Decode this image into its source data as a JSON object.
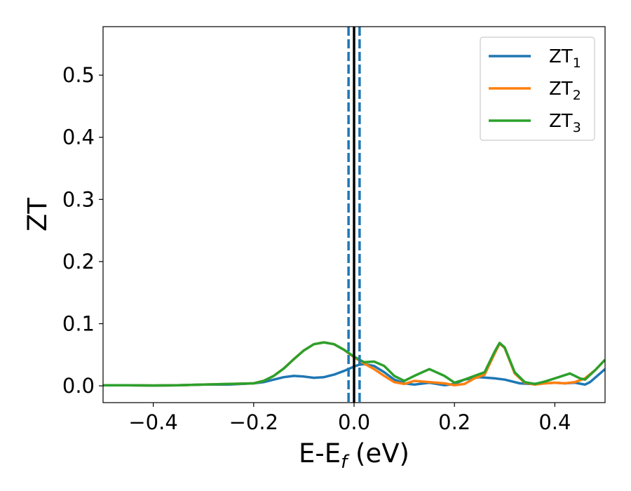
{
  "chart_data": {
    "type": "line",
    "title": "",
    "xlabel": {
      "main": "E-E",
      "sub": "f",
      "suffix": " (eV)"
    },
    "ylabel": "ZT",
    "xlim": [
      -0.5,
      0.5
    ],
    "ylim": [
      -0.027,
      0.578
    ],
    "x_ticks": [
      -0.4,
      -0.2,
      0.0,
      0.2,
      0.4
    ],
    "x_tick_labels": [
      "−0.4",
      "−0.2",
      "0.0",
      "0.2",
      "0.4"
    ],
    "y_ticks": [
      0.0,
      0.1,
      0.2,
      0.3,
      0.4,
      0.5
    ],
    "y_tick_labels": [
      "0.0",
      "0.1",
      "0.2",
      "0.3",
      "0.4",
      "0.5"
    ],
    "grid": false,
    "legend_position": "top-right",
    "vertical_lines": [
      {
        "x": 0.0,
        "style": "solid",
        "color": "#000000"
      },
      {
        "x": -0.011,
        "style": "dashed",
        "color": "#1f77b4"
      },
      {
        "x": 0.011,
        "style": "dashed",
        "color": "#1f77b4"
      }
    ],
    "series": [
      {
        "name": "ZT",
        "sub": "1",
        "color": "#1f77b4",
        "points": [
          [
            -0.5,
            0.001
          ],
          [
            -0.45,
            0.001
          ],
          [
            -0.4,
            0.0005
          ],
          [
            -0.35,
            0.001
          ],
          [
            -0.3,
            0.002
          ],
          [
            -0.25,
            0.002
          ],
          [
            -0.2,
            0.004
          ],
          [
            -0.18,
            0.006
          ],
          [
            -0.16,
            0.01
          ],
          [
            -0.14,
            0.014
          ],
          [
            -0.12,
            0.016
          ],
          [
            -0.1,
            0.015
          ],
          [
            -0.08,
            0.013
          ],
          [
            -0.06,
            0.014
          ],
          [
            -0.04,
            0.018
          ],
          [
            -0.02,
            0.024
          ],
          [
            0.0,
            0.031
          ],
          [
            0.01,
            0.034
          ],
          [
            0.02,
            0.035
          ],
          [
            0.04,
            0.032
          ],
          [
            0.06,
            0.022
          ],
          [
            0.08,
            0.01
          ],
          [
            0.1,
            0.004
          ],
          [
            0.12,
            0.002
          ],
          [
            0.15,
            0.005
          ],
          [
            0.18,
            0.001
          ],
          [
            0.2,
            0.003
          ],
          [
            0.22,
            0.01
          ],
          [
            0.25,
            0.014
          ],
          [
            0.28,
            0.012
          ],
          [
            0.3,
            0.01
          ],
          [
            0.33,
            0.004
          ],
          [
            0.35,
            0.003
          ],
          [
            0.38,
            0.004
          ],
          [
            0.4,
            0.005
          ],
          [
            0.42,
            0.004
          ],
          [
            0.44,
            0.005
          ],
          [
            0.46,
            0.002
          ],
          [
            0.47,
            0.006
          ],
          [
            0.49,
            0.02
          ],
          [
            0.5,
            0.027
          ]
        ]
      },
      {
        "name": "ZT",
        "sub": "2",
        "color": "#ff7f0e",
        "points": [
          [
            -0.5,
            0.001
          ],
          [
            -0.45,
            0.001
          ],
          [
            -0.4,
            0.0005
          ],
          [
            -0.35,
            0.001
          ],
          [
            -0.3,
            0.002
          ],
          [
            -0.25,
            0.003
          ],
          [
            -0.2,
            0.004
          ],
          [
            -0.18,
            0.008
          ],
          [
            -0.16,
            0.016
          ],
          [
            -0.14,
            0.028
          ],
          [
            -0.12,
            0.043
          ],
          [
            -0.1,
            0.057
          ],
          [
            -0.08,
            0.067
          ],
          [
            -0.06,
            0.07
          ],
          [
            -0.04,
            0.067
          ],
          [
            -0.02,
            0.058
          ],
          [
            0.0,
            0.046
          ],
          [
            0.02,
            0.036
          ],
          [
            0.04,
            0.027
          ],
          [
            0.06,
            0.016
          ],
          [
            0.08,
            0.006
          ],
          [
            0.1,
            0.003
          ],
          [
            0.12,
            0.008
          ],
          [
            0.15,
            0.006
          ],
          [
            0.18,
            0.004
          ],
          [
            0.2,
            0.001
          ],
          [
            0.22,
            0.003
          ],
          [
            0.24,
            0.012
          ],
          [
            0.26,
            0.018
          ],
          [
            0.28,
            0.052
          ],
          [
            0.29,
            0.068
          ],
          [
            0.3,
            0.061
          ],
          [
            0.32,
            0.02
          ],
          [
            0.34,
            0.005
          ],
          [
            0.36,
            0.002
          ],
          [
            0.38,
            0.004
          ],
          [
            0.4,
            0.005
          ],
          [
            0.42,
            0.004
          ],
          [
            0.44,
            0.006
          ],
          [
            0.46,
            0.012
          ],
          [
            0.48,
            0.025
          ],
          [
            0.5,
            0.042
          ]
        ]
      },
      {
        "name": "ZT",
        "sub": "3",
        "color": "#2ca02c",
        "points": [
          [
            -0.5,
            0.001
          ],
          [
            -0.45,
            0.001
          ],
          [
            -0.4,
            0.0005
          ],
          [
            -0.35,
            0.001
          ],
          [
            -0.3,
            0.002
          ],
          [
            -0.25,
            0.003
          ],
          [
            -0.2,
            0.004
          ],
          [
            -0.18,
            0.008
          ],
          [
            -0.16,
            0.016
          ],
          [
            -0.14,
            0.028
          ],
          [
            -0.12,
            0.043
          ],
          [
            -0.1,
            0.057
          ],
          [
            -0.08,
            0.067
          ],
          [
            -0.06,
            0.07
          ],
          [
            -0.04,
            0.067
          ],
          [
            -0.02,
            0.058
          ],
          [
            0.0,
            0.047
          ],
          [
            0.02,
            0.038
          ],
          [
            0.04,
            0.039
          ],
          [
            0.06,
            0.032
          ],
          [
            0.08,
            0.016
          ],
          [
            0.1,
            0.008
          ],
          [
            0.12,
            0.016
          ],
          [
            0.15,
            0.027
          ],
          [
            0.18,
            0.016
          ],
          [
            0.2,
            0.005
          ],
          [
            0.22,
            0.01
          ],
          [
            0.24,
            0.016
          ],
          [
            0.26,
            0.022
          ],
          [
            0.28,
            0.055
          ],
          [
            0.29,
            0.069
          ],
          [
            0.3,
            0.062
          ],
          [
            0.32,
            0.022
          ],
          [
            0.34,
            0.006
          ],
          [
            0.36,
            0.003
          ],
          [
            0.38,
            0.007
          ],
          [
            0.4,
            0.012
          ],
          [
            0.43,
            0.02
          ],
          [
            0.45,
            0.012
          ],
          [
            0.46,
            0.01
          ],
          [
            0.48,
            0.025
          ],
          [
            0.5,
            0.042
          ]
        ]
      }
    ]
  }
}
